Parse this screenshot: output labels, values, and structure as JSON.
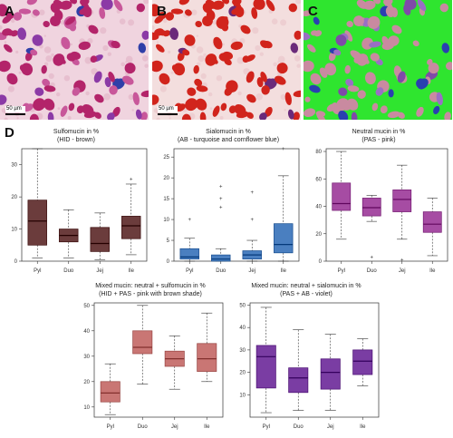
{
  "panels": [
    {
      "letter": "A",
      "scale_label": "50 µm",
      "stain": "histology"
    },
    {
      "letter": "B",
      "scale_label": "50 µm",
      "stain": "segmented-red"
    },
    {
      "letter": "C",
      "scale_label": "",
      "stain": "classified-green"
    }
  ],
  "panel_d_letter": "D",
  "colors": {
    "sulfomucin": "#6b3c3c",
    "sialomucin": "#4a7fc0",
    "neutral": "#a64ca3",
    "mixed_sulfo": "#c97674",
    "mixed_sialo": "#7a3da3",
    "background_green": "#2fe52f",
    "stain_red": "#d1241c"
  },
  "chart_data": [
    {
      "type": "box",
      "title": "Sulfomucin in %",
      "subtitle": "(HID - brown)",
      "categories": [
        "Pyl",
        "Duo",
        "Jej",
        "Ile"
      ],
      "ylim": [
        0,
        35
      ],
      "yticks": [
        0,
        10,
        20,
        30
      ],
      "color": "#6b3c3c",
      "boxes": [
        {
          "min": 1,
          "q1": 5,
          "median": 12.5,
          "q3": 19,
          "max": 35,
          "outliers": []
        },
        {
          "min": 1,
          "q1": 6,
          "median": 8,
          "q3": 10,
          "max": 16,
          "outliers": []
        },
        {
          "min": 0.5,
          "q1": 3,
          "median": 5.5,
          "q3": 10.5,
          "max": 15,
          "outliers": []
        },
        {
          "min": 2,
          "q1": 7,
          "median": 11,
          "q3": 14,
          "max": 24,
          "outliers": [
            25.5
          ]
        }
      ]
    },
    {
      "type": "box",
      "title": "Sialomucin in %",
      "subtitle": "(AB - turquoise and cornflower blue)",
      "categories": [
        "Pyl",
        "Duo",
        "Jej",
        "Ile"
      ],
      "ylim": [
        0,
        27
      ],
      "yticks": [
        0,
        5,
        10,
        15,
        20,
        25
      ],
      "color": "#4a7fc0",
      "boxes": [
        {
          "min": 0,
          "q1": 0.5,
          "median": 1,
          "q3": 3,
          "max": 5.5,
          "outliers": [
            10
          ]
        },
        {
          "min": 0,
          "q1": 0,
          "median": 0.5,
          "q3": 1.5,
          "max": 3,
          "outliers": [
            13,
            15,
            18
          ]
        },
        {
          "min": 0,
          "q1": 0.5,
          "median": 1.5,
          "q3": 2.5,
          "max": 5,
          "outliers": [
            10,
            16.5
          ]
        },
        {
          "min": 0,
          "q1": 2,
          "median": 4,
          "q3": 9,
          "max": 20.5,
          "outliers": [
            27
          ]
        }
      ]
    },
    {
      "type": "box",
      "title": "Neutral mucin in %",
      "subtitle": "(PAS - pink)",
      "categories": [
        "Pyl",
        "Duo",
        "Jej",
        "Ile"
      ],
      "ylim": [
        0,
        82
      ],
      "yticks": [
        0,
        20,
        40,
        60,
        80
      ],
      "color": "#a64ca3",
      "boxes": [
        {
          "min": 16,
          "q1": 37,
          "median": 42,
          "q3": 57,
          "max": 80,
          "outliers": []
        },
        {
          "min": 29,
          "q1": 33,
          "median": 39,
          "q3": 46,
          "max": 48,
          "outliers": [
            3
          ]
        },
        {
          "min": 16,
          "q1": 36,
          "median": 45,
          "q3": 52,
          "max": 70,
          "outliers": [
            1
          ]
        },
        {
          "min": 4,
          "q1": 21,
          "median": 27,
          "q3": 36,
          "max": 46,
          "outliers": []
        }
      ]
    },
    {
      "type": "box",
      "title": "Mixed mucin: neutral + sulfomucin in %",
      "subtitle": "(HID + PAS - pink with brown shade)",
      "categories": [
        "Pyl",
        "Duo",
        "Jej",
        "Ile"
      ],
      "ylim": [
        6,
        51
      ],
      "yticks": [
        10,
        20,
        30,
        40,
        50
      ],
      "color": "#c97674",
      "boxes": [
        {
          "min": 7,
          "q1": 12,
          "median": 15.5,
          "q3": 20,
          "max": 27,
          "outliers": []
        },
        {
          "min": 19,
          "q1": 31,
          "median": 33.5,
          "q3": 40,
          "max": 50,
          "outliers": []
        },
        {
          "min": 17,
          "q1": 26,
          "median": 29,
          "q3": 32,
          "max": 38,
          "outliers": []
        },
        {
          "min": 20,
          "q1": 24,
          "median": 29,
          "q3": 35,
          "max": 47,
          "outliers": []
        }
      ]
    },
    {
      "type": "box",
      "title": "Mixed mucin: neutral + sialomucin in %",
      "subtitle": "(PAS + AB - violet)",
      "categories": [
        "Pyl",
        "Duo",
        "Jej",
        "Ile"
      ],
      "ylim": [
        0,
        51
      ],
      "yticks": [
        10,
        20,
        30,
        40,
        50
      ],
      "color": "#7a3da3",
      "boxes": [
        {
          "min": 2,
          "q1": 13,
          "median": 27,
          "q3": 32,
          "max": 49,
          "outliers": []
        },
        {
          "min": 3,
          "q1": 11,
          "median": 17.5,
          "q3": 22,
          "max": 39,
          "outliers": []
        },
        {
          "min": 3,
          "q1": 12.5,
          "median": 20,
          "q3": 26,
          "max": 37,
          "outliers": []
        },
        {
          "min": 14,
          "q1": 19,
          "median": 25,
          "q3": 30,
          "max": 35,
          "outliers": []
        }
      ]
    }
  ]
}
